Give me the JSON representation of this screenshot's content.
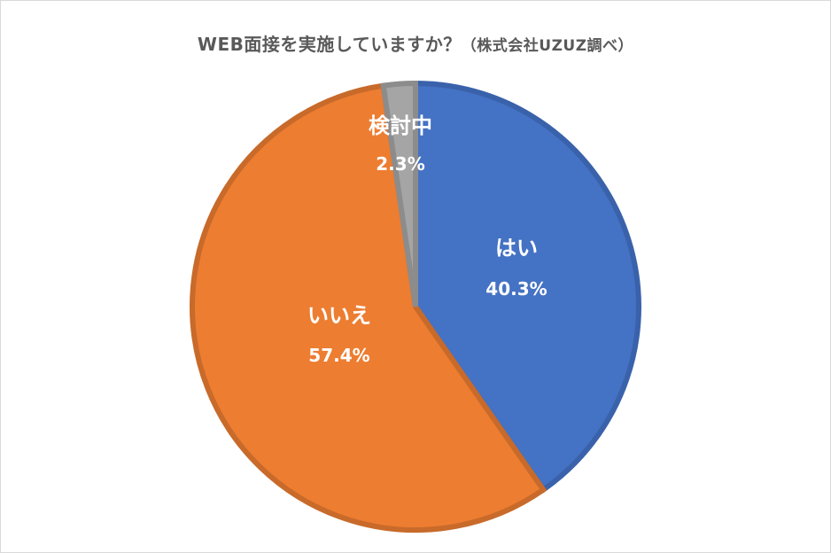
{
  "chart_data": {
    "type": "pie",
    "title": "WEB面接を実施していますか？",
    "subtitle": "（株式会社UZUZ調べ）",
    "categories": [
      "はい",
      "いいえ",
      "検討中"
    ],
    "values": [
      40.3,
      57.4,
      2.3
    ],
    "value_labels": [
      "40.3%",
      "57.4%",
      "2.3%"
    ],
    "colors": [
      "#4472C4",
      "#ED7D31",
      "#A5A5A5"
    ],
    "stroke_colors": [
      "#3A62AB",
      "#C86A2A",
      "#8C8C8C"
    ],
    "start": "12 o'clock, clockwise",
    "legend": "none"
  }
}
